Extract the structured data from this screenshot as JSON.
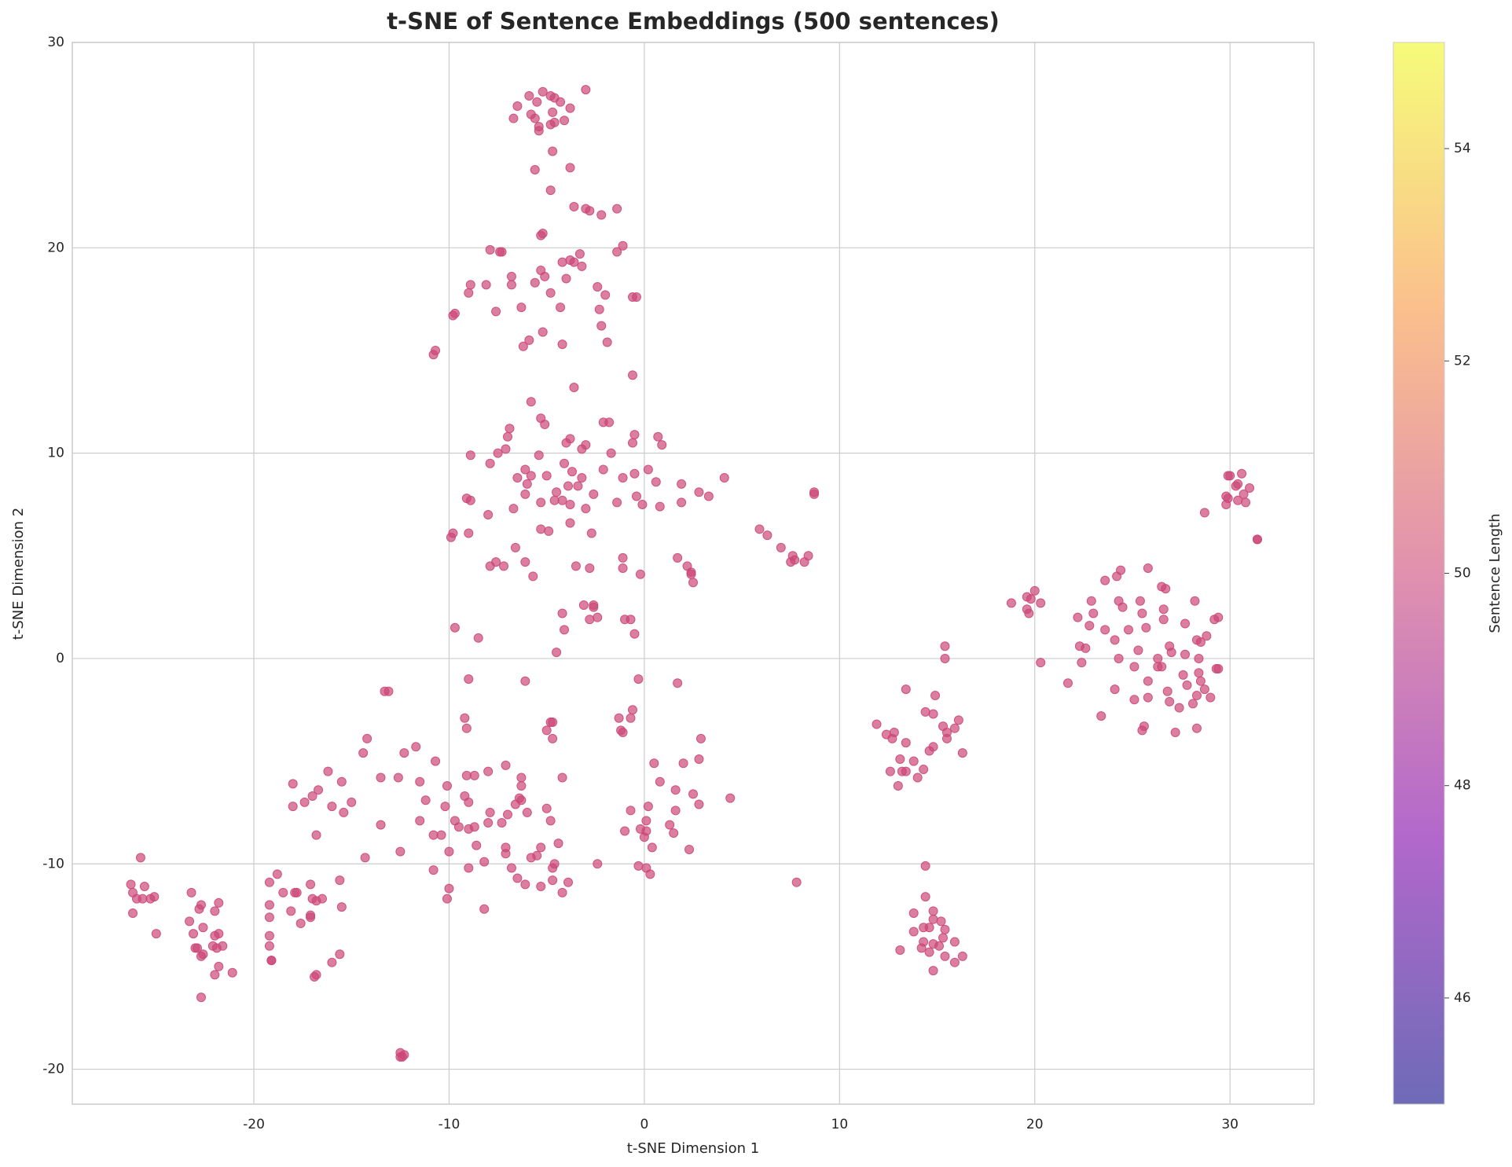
{
  "chart_data": {
    "type": "scatter",
    "title": "t-SNE of Sentence Embeddings (500 sentences)",
    "x_label": "t-SNE Dimension 1",
    "y_label": "t-SNE Dimension 2",
    "color": "#cc4778",
    "grid": true,
    "xlim": [
      -29.3,
      34.3
    ],
    "ylim": [
      -21.7,
      30
    ],
    "xticks": [
      -20,
      -10,
      0,
      10,
      20,
      30
    ],
    "yticks": [
      -20,
      -10,
      0,
      10,
      20,
      30
    ],
    "colorbar": {
      "label": "Sentence Length",
      "lim": [
        45,
        55
      ],
      "ticks": [
        46,
        48,
        50,
        52,
        54
      ],
      "colormap": "plasma"
    },
    "x": [
      -5.2,
      -4.6,
      -5.9,
      -5.5,
      -4.8,
      -3,
      -6.5,
      -4.3,
      -3.8,
      -5.8,
      -4.7,
      -6.7,
      -5.6,
      -4.1,
      -4.6,
      -5.4,
      -4.8,
      -5.4,
      -4.7,
      -3.8,
      -5.6,
      -4.8,
      -3.6,
      -3,
      -2.8,
      -1.4,
      -2.2,
      -5.2,
      -5.3,
      -7.9,
      -7.4,
      -7.3,
      -3.3,
      -3.8,
      -3.6,
      -4.2,
      -1.4,
      -1.1,
      -3.2,
      -5.3,
      -6.8,
      -5.1,
      -4,
      -8.9,
      -8.1,
      -6.8,
      -5.6,
      -2.4,
      -9,
      -4.8,
      -2,
      -0.6,
      -0.4,
      -4.3,
      -6.3,
      -7.6,
      -2.3,
      -9.8,
      -9.7,
      -2.2,
      -5.2,
      -5.9,
      -6.2,
      -4.2,
      -1.9,
      -10.8,
      -10.7,
      -0.6,
      -3.6,
      -5.8,
      -5.3,
      -5.1,
      -6.9,
      -2.1,
      -1.8,
      -0.5,
      0.7,
      -7,
      -3.8,
      -4,
      -3,
      -0.6,
      0.9,
      -7.1,
      -3.2,
      -7.5,
      -1.7,
      -8.9,
      -5.4,
      -4.1,
      -7.9,
      -6.1,
      -2.1,
      -3.7,
      -0.5,
      0.2,
      -5,
      -5.8,
      -3.2,
      -1.1,
      -6.5,
      -6,
      0.6,
      1.9,
      4.1,
      -3.4,
      -3.9,
      2.8,
      -4.5,
      -2.6,
      -6.1,
      -0.4,
      3.3,
      -4.6,
      -4.2,
      -5.3,
      -9.1,
      -8.9,
      -3.8,
      -1.4,
      -0.1,
      0.8,
      1.9,
      -3,
      -6.7,
      -8,
      8.7,
      8.7,
      -9.8,
      -9.9,
      -9,
      -5.3,
      -4.9,
      -2.7,
      -3.8,
      -6.6,
      5.9,
      6.3,
      7,
      7.6,
      8.4,
      7.5,
      7.7,
      8.2,
      1.7,
      -7.6,
      -6.1,
      -7.9,
      -7.2,
      -1.1,
      -1.1,
      -3.5,
      -2.8,
      2.2,
      2.4,
      2.4,
      -0.2,
      -5.7,
      2.5,
      -3.1,
      -2.6,
      -2.6,
      -4.2,
      -2.4,
      -2.8,
      -1,
      -0.7,
      -4.1,
      -9.7,
      -8.5,
      -0.5,
      -4.5,
      -13.3,
      -13.1,
      -9,
      -6.1,
      -0.3,
      1.7,
      -0.6,
      -9.2,
      -9.1,
      -1.3,
      -0.7,
      -4.8,
      -4.7,
      -5,
      -1.2,
      -1.1,
      -4.7,
      -14.2,
      2.9,
      -14.4,
      -12.3,
      -11.7,
      -10.7,
      0.5,
      2,
      2.8,
      -16.2,
      -7.1,
      -8,
      -9.1,
      -8.7,
      -13.5,
      -12.6,
      -4.2,
      -6.3,
      -18,
      -15.5,
      -11.5,
      -10.1,
      -6.3,
      0.8,
      1.6,
      2.5,
      -16.7,
      -17,
      -17.4,
      -18,
      -16,
      -15,
      -11.2,
      -9.2,
      -9,
      -6.3,
      -6.4,
      -6.6,
      -7.9,
      -5,
      -0.7,
      0.2,
      1.6,
      2.8,
      4.4,
      -10.2,
      -15.4,
      -13.5,
      -11.5,
      -9.7,
      -7,
      -6,
      -4.8,
      -1,
      0.1,
      1.3,
      -16.8,
      -10.4,
      -10.8,
      -9.5,
      -9,
      -8.7,
      -7.3,
      -8,
      -0.2,
      0.1,
      1.5,
      0,
      -14.3,
      -12.5,
      -10,
      -8.6,
      -7.1,
      -7.1,
      -5.3,
      -4.4,
      0.4,
      2.3,
      -5.8,
      -5.5,
      -8.2,
      -9,
      -6.8,
      -4.7,
      -4.6,
      -2.4,
      -0.3,
      0.1,
      0.3,
      -10.8,
      -6.5,
      -4.7,
      -6.1,
      -5.3,
      -3.9,
      -10,
      -4.2,
      -10.1,
      -8.2,
      7.8,
      -25.8,
      -26.3,
      -25.6,
      -26.2,
      -26,
      -25.7,
      -25.3,
      -25.1,
      -26.2,
      -25,
      -23.2,
      -22.8,
      -22.7,
      -22,
      -21.8,
      -23.3,
      -23.1,
      -22.6,
      -22,
      -21.8,
      -23,
      -22.9,
      -22.6,
      -22.1,
      -21.9,
      -21.6,
      -22.7,
      -21.8,
      -22,
      -21.1,
      -22.7,
      -18.8,
      -19.2,
      -18.5,
      -17.9,
      -17.8,
      -17.1,
      -15.6,
      -17,
      -16.8,
      -16.5,
      -19.2,
      -18.1,
      -17.1,
      -17.1,
      -15.5,
      -19.2,
      -17.6,
      -19.2,
      -19.2,
      -19.1,
      -19.1,
      -15.6,
      -16,
      -16.8,
      -16.9,
      -12.5,
      -12.4,
      -12.3,
      -12.5,
      15.4,
      15.4,
      13.4,
      14.9,
      14.4,
      14.8,
      16.1,
      11.9,
      15.3,
      15.9,
      15.5,
      12.4,
      12.8,
      12.7,
      13.4,
      14.8,
      15.5,
      16.3,
      14.6,
      13.1,
      13.8,
      14.3,
      12.6,
      13.2,
      13.4,
      14,
      13,
      14.4,
      14.4,
      13.8,
      14.8,
      14.8,
      15.2,
      14.3,
      14.6,
      15.4,
      13.8,
      15.3,
      14.3,
      14.8,
      15.9,
      15.1,
      14.2,
      13.1,
      14.6,
      15.4,
      16.3,
      15.9,
      14.8,
      25.8,
      24.4,
      24.2,
      23.6,
      26.5,
      26.7,
      18.8,
      19.6,
      20,
      19.8,
      20.3,
      19.6,
      19.7,
      22.9,
      24.3,
      25.4,
      28.2,
      24.5,
      26.6,
      23,
      25.5,
      22.2,
      29.4,
      29.2,
      26.6,
      27.7,
      22.8,
      23.6,
      24.8,
      25.7,
      28.8,
      24.1,
      28.3,
      28.5,
      26.9,
      22.3,
      25.3,
      22.6,
      27.7,
      27,
      26.3,
      24.3,
      28.4,
      20.3,
      22.4,
      26.3,
      25.1,
      26.5,
      29.4,
      29.3,
      27.6,
      28.4,
      21.7,
      25.8,
      27.8,
      28.5,
      24.1,
      26.8,
      28.7,
      28.3,
      25.8,
      25.1,
      26.9,
      28.1,
      29,
      27.4,
      23.4,
      25.6,
      25.5,
      28.3,
      27.2,
      29.9,
      30,
      30.6,
      30.4,
      30.3,
      31,
      30.7,
      29.8,
      29.9,
      30.4,
      30.8,
      29.8,
      28.7,
      31.4,
      31.4
    ],
    "values": [
      27.6,
      27.3,
      27.4,
      27.1,
      27.4,
      27.7,
      26.9,
      27.1,
      26.8,
      26.5,
      26.6,
      26.3,
      26.3,
      26.2,
      26.1,
      25.9,
      26,
      25.7,
      24.7,
      23.9,
      23.8,
      22.8,
      22,
      21.9,
      21.8,
      21.9,
      21.6,
      20.7,
      20.6,
      19.9,
      19.8,
      19.8,
      19.7,
      19.4,
      19.3,
      19.3,
      19.8,
      20.1,
      19.1,
      18.9,
      18.6,
      18.6,
      18.5,
      18.2,
      18.2,
      18.2,
      18.3,
      18.1,
      17.8,
      17.8,
      17.7,
      17.6,
      17.6,
      17.1,
      17.1,
      16.9,
      17,
      16.7,
      16.8,
      16.2,
      15.9,
      15.5,
      15.2,
      15.3,
      15.4,
      14.8,
      15,
      13.8,
      13.2,
      12.5,
      11.7,
      11.4,
      11.2,
      11.5,
      11.5,
      10.9,
      10.8,
      10.8,
      10.7,
      10.5,
      10.4,
      10.5,
      10.4,
      10.2,
      10.2,
      10,
      10,
      9.9,
      9.9,
      9.5,
      9.5,
      9.2,
      9.2,
      9.1,
      9,
      9.2,
      8.9,
      8.9,
      8.8,
      8.8,
      8.8,
      8.5,
      8.6,
      8.5,
      8.8,
      8.4,
      8.4,
      8.1,
      8.1,
      8,
      8,
      7.9,
      7.9,
      7.7,
      7.7,
      7.6,
      7.8,
      7.7,
      7.5,
      7.6,
      7.5,
      7.4,
      7.6,
      7.3,
      7.3,
      7,
      8,
      8.1,
      6.1,
      5.9,
      6.1,
      6.3,
      6.2,
      6.1,
      6.6,
      5.4,
      6.3,
      6,
      5.4,
      5,
      5,
      4.7,
      4.8,
      4.7,
      4.9,
      4.7,
      4.7,
      4.5,
      4.5,
      4.9,
      4.4,
      4.5,
      4.4,
      4.5,
      4.2,
      4.1,
      4.1,
      4,
      3.7,
      2.6,
      2.6,
      2.5,
      2.2,
      2,
      1.9,
      1.9,
      1.9,
      1.4,
      1.5,
      1,
      1.2,
      0.3,
      -1.6,
      -1.6,
      -1,
      -1.1,
      -1,
      -1.2,
      -2.5,
      -2.9,
      -3.4,
      -2.9,
      -2.9,
      -3.1,
      -3.1,
      -3.5,
      -3.5,
      -3.6,
      -3.9,
      -3.9,
      -3.9,
      -4.6,
      -4.6,
      -4.3,
      -5,
      -5.1,
      -5.1,
      -4.9,
      -5.5,
      -5.2,
      -5.5,
      -5.7,
      -5.7,
      -5.8,
      -5.8,
      -5.8,
      -5.8,
      -6.1,
      -6,
      -6,
      -6.2,
      -6.2,
      -6,
      -6.4,
      -6.6,
      -6.4,
      -6.7,
      -7,
      -7.2,
      -7.2,
      -7,
      -6.9,
      -6.7,
      -7,
      -6.9,
      -6.8,
      -7.1,
      -7.5,
      -7.3,
      -7.4,
      -7.2,
      -7.4,
      -7.1,
      -6.8,
      -7.2,
      -7.5,
      -8.1,
      -7.9,
      -7.9,
      -7.6,
      -7.5,
      -7.9,
      -8.4,
      -7.9,
      -8.1,
      -8.6,
      -8.6,
      -8.6,
      -8.2,
      -8.3,
      -8.2,
      -8,
      -8,
      -8.3,
      -8.4,
      -8.5,
      -8.7,
      -9.7,
      -9.4,
      -9.4,
      -9.1,
      -9.2,
      -9.5,
      -9.2,
      -9,
      -9.2,
      -9.3,
      -9.7,
      -9.6,
      -9.9,
      -10.2,
      -10.2,
      -10.2,
      -10,
      -10,
      -10.1,
      -10.2,
      -10.5,
      -10.3,
      -10.7,
      -10.8,
      -11,
      -11.1,
      -10.9,
      -11.2,
      -11.4,
      -11.7,
      -12.2,
      -10.9,
      -9.7,
      -11,
      -11.1,
      -11.4,
      -11.7,
      -11.7,
      -11.7,
      -11.6,
      -12.4,
      -13.4,
      -11.4,
      -12.2,
      -12,
      -12.3,
      -11.9,
      -12.8,
      -13.4,
      -13.1,
      -13.5,
      -13.4,
      -14.1,
      -14.1,
      -14.4,
      -14,
      -14.1,
      -14,
      -14.5,
      -15,
      -15.4,
      -15.3,
      -16.5,
      -10.5,
      -10.9,
      -11.4,
      -11.4,
      -11.4,
      -11,
      -10.8,
      -11.7,
      -11.8,
      -11.7,
      -12,
      -12.3,
      -12.5,
      -12.6,
      -12.1,
      -12.6,
      -12.9,
      -13.5,
      -14,
      -14.7,
      -14.7,
      -14.4,
      -14.8,
      -15.4,
      -15.5,
      -19.2,
      -19.4,
      -19.3,
      -19.4,
      0.6,
      0,
      -1.5,
      -1.8,
      -2.6,
      -2.7,
      -3,
      -3.2,
      -3.3,
      -3.4,
      -3.6,
      -3.7,
      -3.6,
      -3.9,
      -4.1,
      -4.3,
      -3.9,
      -4.6,
      -4.5,
      -4.9,
      -5,
      -5.4,
      -5.5,
      -5.5,
      -5.5,
      -5.8,
      -6.2,
      -10.1,
      -11.6,
      -12.4,
      -12.3,
      -12.7,
      -12.8,
      -13.1,
      -13.1,
      -13.2,
      -13.3,
      -13.6,
      -13.8,
      -13.9,
      -13.8,
      -14,
      -14.1,
      -14.2,
      -14.3,
      -14.5,
      -14.5,
      -14.8,
      -15.2,
      4.4,
      4.3,
      4,
      3.8,
      3.5,
      3.4,
      2.7,
      3,
      3.3,
      2.9,
      2.7,
      2.4,
      2.2,
      2.8,
      2.8,
      2.8,
      2.8,
      2.5,
      2.4,
      2.2,
      2.2,
      2,
      2,
      1.9,
      1.9,
      1.7,
      1.6,
      1.4,
      1.4,
      1.5,
      1.1,
      0.9,
      0.9,
      0.8,
      0.6,
      0.6,
      0.4,
      0.5,
      0.2,
      0.3,
      0,
      0,
      0,
      -0.2,
      -0.2,
      -0.4,
      -0.4,
      -0.4,
      -0.5,
      -0.5,
      -0.8,
      -0.7,
      -1.2,
      -1.1,
      -1.3,
      -1.1,
      -1.5,
      -1.6,
      -1.5,
      -1.8,
      -1.9,
      -2,
      -2.1,
      -2.2,
      -1.9,
      -2.4,
      -2.8,
      -3.3,
      -3.5,
      -3.4,
      -3.6,
      8.9,
      8.9,
      9,
      8.5,
      8.4,
      8.3,
      8,
      7.9,
      7.8,
      7.7,
      7.6,
      7.5,
      7.1,
      5.8,
      5.8
    ]
  }
}
